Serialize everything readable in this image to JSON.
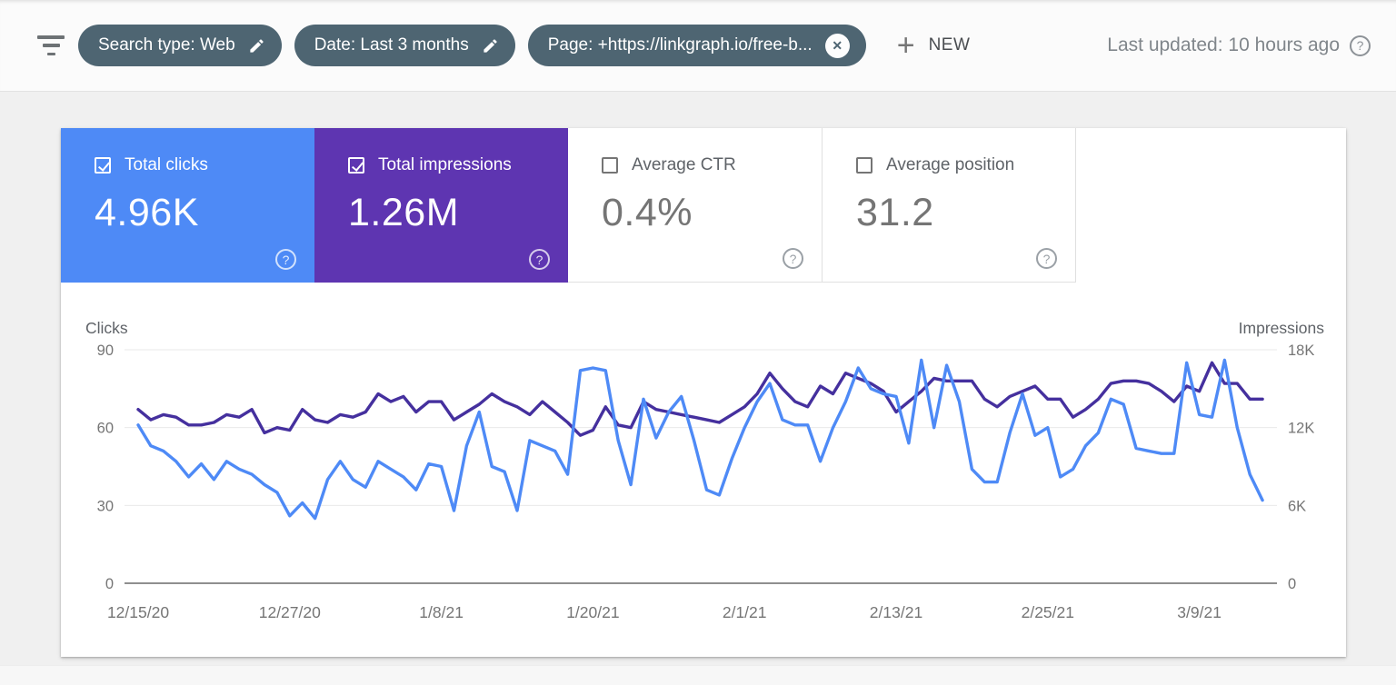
{
  "icons": {
    "help": "?",
    "plus": "+",
    "close": "✕"
  },
  "topbar": {
    "filter_icon": "filter-list-icon",
    "chips": [
      {
        "label": "Search type: Web",
        "icon": "edit-pencil"
      },
      {
        "label": "Date: Last 3 months",
        "icon": "edit-pencil"
      },
      {
        "label": "Page: +https://linkgraph.io/free-b...",
        "icon": "close-circle"
      }
    ],
    "new_button": {
      "label": "NEW"
    },
    "last_updated": "Last updated: 10 hours ago"
  },
  "metric_cards": [
    {
      "label": "Total clicks",
      "value": "4.96K",
      "checked": true,
      "bg": "#4e8af6",
      "text": "#ffffff"
    },
    {
      "label": "Total impressions",
      "value": "1.26M",
      "checked": true,
      "bg": "#5e35b1",
      "text": "#ffffff"
    },
    {
      "label": "Average CTR",
      "value": "0.4%",
      "checked": false,
      "bg": "#ffffff",
      "text": "#757575"
    },
    {
      "label": "Average position",
      "value": "31.2",
      "checked": false,
      "bg": "#ffffff",
      "text": "#757575"
    }
  ],
  "chart_data": {
    "type": "line",
    "x_unit": "day",
    "x_start": "12/15/20",
    "x_tick_labels": [
      "12/15/20",
      "12/27/20",
      "1/8/21",
      "1/20/21",
      "2/1/21",
      "2/13/21",
      "2/25/21",
      "3/9/21"
    ],
    "x_tick_positions": [
      0,
      12,
      24,
      36,
      48,
      60,
      72,
      84
    ],
    "grid": true,
    "legend_position": "none",
    "left_axis": {
      "label": "Clicks",
      "tick_labels": [
        "90",
        "60",
        "30",
        "0"
      ],
      "tick_values": [
        90,
        60,
        30,
        0
      ],
      "range": [
        0,
        90
      ]
    },
    "right_axis": {
      "label": "Impressions",
      "tick_labels": [
        "18K",
        "12K",
        "6K",
        "0"
      ],
      "tick_values": [
        18000,
        12000,
        6000,
        0
      ],
      "range": [
        0,
        18000
      ]
    },
    "series": [
      {
        "name": "Impressions",
        "axis": "right",
        "color": "#45309e",
        "values": [
          13400,
          12600,
          13000,
          12800,
          12200,
          12200,
          12400,
          13000,
          12800,
          13400,
          11600,
          12000,
          11800,
          13400,
          12600,
          12400,
          13000,
          12800,
          13200,
          14600,
          14000,
          14400,
          13200,
          14000,
          14000,
          12600,
          13200,
          13800,
          14600,
          14000,
          13600,
          13000,
          14000,
          13200,
          12400,
          11400,
          11800,
          13600,
          12200,
          12000,
          14000,
          13400,
          13200,
          13000,
          12800,
          12600,
          12400,
          13000,
          13600,
          14600,
          16200,
          15000,
          14000,
          13600,
          15200,
          14600,
          16200,
          15800,
          15400,
          14800,
          13200,
          14000,
          14800,
          15800,
          15600,
          15600,
          15600,
          14200,
          13600,
          14400,
          14800,
          15200,
          14200,
          14200,
          12800,
          13400,
          14200,
          15400,
          15600,
          15600,
          15400,
          14800,
          14000,
          15200,
          14800,
          17000,
          15400,
          15400,
          14200,
          14200
        ]
      },
      {
        "name": "Clicks",
        "axis": "left",
        "color": "#4e8af6",
        "values": [
          61,
          53,
          51,
          47,
          41,
          46,
          40,
          47,
          44,
          42,
          38,
          35,
          26,
          31,
          25,
          40,
          47,
          40,
          37,
          47,
          44,
          41,
          36,
          46,
          45,
          28,
          53,
          66,
          45,
          43,
          28,
          55,
          53,
          51,
          42,
          82,
          83,
          82,
          55,
          38,
          71,
          56,
          66,
          72,
          55,
          36,
          34,
          48,
          60,
          70,
          77,
          63,
          61,
          61,
          47,
          60,
          70,
          83,
          75,
          73,
          72,
          54,
          86,
          60,
          84,
          70,
          44,
          39,
          39,
          58,
          73,
          57,
          60,
          41,
          44,
          53,
          58,
          71,
          69,
          52,
          51,
          50,
          50,
          85,
          65,
          64,
          86,
          60,
          42,
          32
        ]
      }
    ]
  }
}
